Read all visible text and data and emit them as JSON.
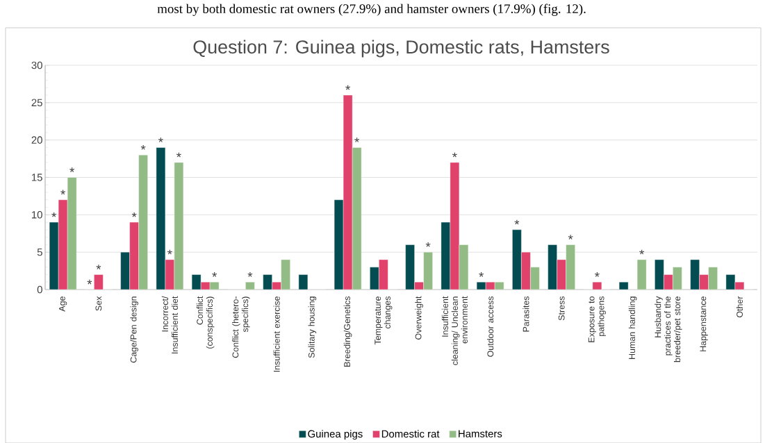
{
  "chart_data": {
    "type": "bar",
    "title": "Question 7: Guinea pigs, Domestic rats, Hamsters",
    "annotations": [
      "most by both domestic rat owners (27.9%) and hamster owners (17.9%) (fig. 12)."
    ],
    "categories": [
      "Age",
      "Sex",
      "Cage/Pen design",
      "Incorrect/ Insufficient diet",
      "Conflict (conspecifics)",
      "Conflict (hetero- specifics)",
      "Insufficient exercise",
      "Solitary housing",
      "Breeding/Genetics",
      "Temperature changes",
      "Overweight",
      "Insufficient cleaning/ Unclean environment",
      "Outdoor access",
      "Parasites",
      "Stress",
      "Exposure to pathogens",
      "Human handling",
      "Husbandry practices of the breeder/pet store",
      "Happenstance",
      "Other"
    ],
    "series": [
      {
        "name": "Guinea pigs",
        "color": "#034d52",
        "values": [
          9,
          0,
          5,
          19,
          2,
          0,
          2,
          2,
          12,
          3,
          6,
          9,
          1,
          8,
          6,
          0,
          1,
          4,
          4,
          2
        ],
        "value_labels": [
          "*",
          "*",
          null,
          "*",
          null,
          null,
          null,
          null,
          null,
          null,
          null,
          null,
          "*",
          "*",
          null,
          null,
          null,
          null,
          null,
          null
        ]
      },
      {
        "name": "Domestic rat",
        "color": "#e0426b",
        "values": [
          12,
          2,
          9,
          4,
          1,
          0,
          1,
          0,
          26,
          4,
          1,
          17,
          1,
          5,
          4,
          1,
          0,
          2,
          2,
          1
        ],
        "value_labels": [
          "*",
          "*",
          "*",
          "*",
          null,
          null,
          null,
          null,
          "*",
          null,
          null,
          "*",
          null,
          null,
          null,
          "*",
          null,
          null,
          null,
          null
        ]
      },
      {
        "name": "Hamsters",
        "color": "#93bb85",
        "values": [
          15,
          0,
          18,
          17,
          1,
          1,
          4,
          0,
          19,
          0,
          5,
          6,
          1,
          3,
          6,
          0,
          4,
          3,
          3,
          0
        ],
        "value_labels": [
          "*",
          null,
          "*",
          "*",
          "*",
          "*",
          null,
          null,
          "*",
          null,
          "*",
          null,
          null,
          null,
          "*",
          null,
          "*",
          null,
          null,
          null
        ]
      }
    ],
    "ylim": [
      0,
      30
    ],
    "yticks": [
      0,
      5,
      10,
      15,
      20,
      25,
      30
    ],
    "grid": "y",
    "legend": "bottom"
  }
}
